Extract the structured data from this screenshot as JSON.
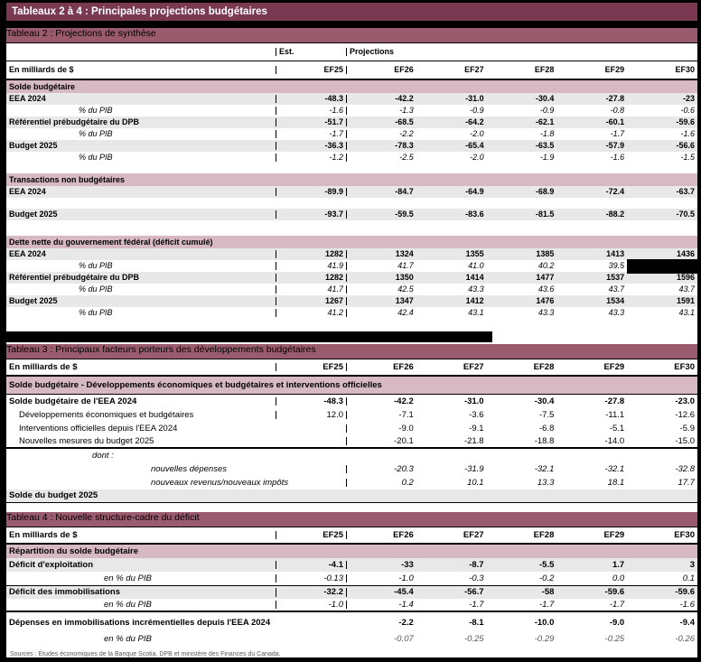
{
  "page": {
    "title": "Tableaux 2 à 4 : Principales projections budgétaires",
    "sources": "Sources : Études économiques de la Banque Scotia, DPB et ministère des Finances du Canada."
  },
  "colors": {
    "page_background": "#000000",
    "title_bar": "#7A3950",
    "table_bar": "#9A5B6E",
    "section_row": "#D6B9C2",
    "striped_row": "#E9E8E8",
    "muted_text": "#595959"
  },
  "columns": {
    "unit_label": "En milliards de $",
    "est_label": "Est.",
    "projections_label": "Projections",
    "years": [
      "EF25",
      "EF26",
      "EF27",
      "EF28",
      "EF29",
      "EF30"
    ]
  },
  "tables": [
    {
      "id": "table2",
      "title": "Tableau 2 : Projections de synthèse",
      "est_row": true,
      "rows": [
        {
          "type": "section",
          "label": "Solde budgétaire",
          "h": 14
        },
        {
          "type": "data",
          "label": "EEA 2024",
          "values": [
            "-48.3",
            "-42.2",
            "-31.0",
            "-30.4",
            "-27.8",
            "-23"
          ]
        },
        {
          "type": "pct",
          "label": "% du PIB",
          "ind": "pct",
          "values": [
            "-1.6",
            "-1.3",
            "-0.9",
            "-0.9",
            "-0.8",
            "-0.6"
          ]
        },
        {
          "type": "data",
          "label": "Référentiel prébudgétaire du DPB",
          "values": [
            "-51.7",
            "-68.5",
            "-64.2",
            "-62.1",
            "-60.1",
            "-59.6"
          ]
        },
        {
          "type": "pct",
          "label": "% du PIB",
          "ind": "pct",
          "values": [
            "-1.7",
            "-2.2",
            "-2.0",
            "-1.8",
            "-1.7",
            "-1.6"
          ]
        },
        {
          "type": "data",
          "label": "Budget 2025",
          "values": [
            "-36.3",
            "-78.3",
            "-65.4",
            "-63.5",
            "-57.9",
            "-56.6"
          ]
        },
        {
          "type": "pct",
          "label": "% du PIB",
          "ind": "pct",
          "values": [
            "-1.2",
            "-2.5",
            "-2.0",
            "-1.9",
            "-1.6",
            "-1.5"
          ]
        },
        {
          "type": "spacer",
          "h": 11
        },
        {
          "type": "section",
          "label": "Transactions non budgétaires",
          "h": 14
        },
        {
          "type": "data",
          "label": "EEA 2024",
          "values": [
            "-89.9",
            "-84.7",
            "-64.9",
            "-68.9",
            "-72.4",
            "-63.7"
          ]
        },
        {
          "type": "spacer",
          "h": 12
        },
        {
          "type": "data",
          "label": "Budget 2025",
          "values": [
            "-93.7",
            "-59.5",
            "-83.6",
            "-81.5",
            "-88.2",
            "-70.5"
          ]
        },
        {
          "type": "spacer",
          "h": 17
        },
        {
          "type": "section",
          "label": "Dette nette du gouvernement fédéral (déficit cumulé)",
          "h": 14
        },
        {
          "type": "data",
          "label": "EEA 2024",
          "values": [
            "1282",
            "1324",
            "1355",
            "1385",
            "1413",
            "1436"
          ]
        },
        {
          "type": "pct",
          "label": "% du PIB",
          "ind": "pct",
          "values": [
            "41.9",
            "41.7",
            "41.0",
            "40.2",
            "39.5",
            ""
          ],
          "redact_last": true
        },
        {
          "type": "data",
          "label": "Référentiel prébudgétaire du DPB",
          "values": [
            "1282",
            "1350",
            "1414",
            "1477",
            "1537",
            "1596"
          ]
        },
        {
          "type": "pct",
          "label": "% du PIB",
          "ind": "pct",
          "values": [
            "41.7",
            "42.5",
            "43.3",
            "43.6",
            "43.7",
            "43.7"
          ]
        },
        {
          "type": "data",
          "label": "Budget 2025",
          "values": [
            "1267",
            "1347",
            "1412",
            "1476",
            "1534",
            "1591"
          ]
        },
        {
          "type": "pct",
          "label": "% du PIB",
          "ind": "pct",
          "values": [
            "41.2",
            "42.4",
            "43.1",
            "43.3",
            "43.3",
            "43.1"
          ]
        }
      ]
    },
    {
      "id": "table3",
      "title": "Tableau 3 : Principaux facteurs porteurs des développements budgétaires",
      "est_row": false,
      "rows": [
        {
          "type": "section",
          "label": "Solde budgétaire - Développements économiques et budgétaires et interventions officielles",
          "h": 20,
          "bb1": true
        },
        {
          "type": "plainbold",
          "label": "Solde budgétaire de l'EEA 2024",
          "values": [
            "-48.3",
            "-42.2",
            "-31.0",
            "-30.4",
            "-27.8",
            "-23.0"
          ]
        },
        {
          "type": "plain",
          "label": "Développements économiques et budgétaires",
          "ind": "1",
          "values": [
            "12.0",
            "-7.1",
            "-3.6",
            "-7.5",
            "-11.1",
            "-12.6"
          ]
        },
        {
          "type": "plain",
          "label": "Interventions officielles depuis l'EEA 2024",
          "ind": "1",
          "values": [
            "",
            "-9.0",
            "-9.1",
            "-6.8",
            "-5.1",
            "-5.9"
          ]
        },
        {
          "type": "plain",
          "label": "Nouvelles mesures du budget 2025",
          "ind": "1",
          "bb2": true,
          "values": [
            "",
            "-20.1",
            "-21.8",
            "-18.8",
            "-14.0",
            "-15.0"
          ]
        },
        {
          "type": "pct",
          "label": "dont :",
          "ind": "dont"
        },
        {
          "type": "pct",
          "label": "nouvelles dépenses",
          "ind": "sub",
          "values": [
            "",
            "-20.3",
            "-31.9",
            "-32.1",
            "-32.1",
            "-32.8"
          ]
        },
        {
          "type": "pct",
          "label": "nouveaux revenus/nouveaux impôts",
          "ind": "sub",
          "values": [
            "",
            "0.2",
            "10.1",
            "13.3",
            "18.1",
            "17.7"
          ]
        },
        {
          "type": "gray",
          "label": "Solde du budget 2025",
          "bb1": true
        }
      ]
    },
    {
      "id": "table4",
      "title": "Tableau 4 : Nouvelle structure-cadre du déficit",
      "est_row": false,
      "rows": [
        {
          "type": "section",
          "label": "Répartition du solde budgétaire",
          "h": 15
        },
        {
          "type": "data",
          "label": "Déficit d'exploitation",
          "values": [
            "-4.1",
            "-33",
            "-8.7",
            "-5.5",
            "1.7",
            "3"
          ]
        },
        {
          "type": "pct",
          "label": "en % du PIB",
          "ind": "pct4",
          "values": [
            "-0.13",
            "-1.0",
            "-0.3",
            "-0.2",
            "0.0",
            "0.1"
          ]
        },
        {
          "type": "data",
          "label": "Déficit des immobilisations",
          "bt1": true,
          "values": [
            "-32.2",
            "-45.4",
            "-56.7",
            "-58",
            "-59.6",
            "-59.6"
          ]
        },
        {
          "type": "pct",
          "label": "en % du PIB",
          "ind": "pct4",
          "bb2": true,
          "values": [
            "-1.0",
            "-1.4",
            "-1.7",
            "-1.7",
            "-1.7",
            "-1.6"
          ]
        },
        {
          "type": "spacer",
          "h": 4,
          "no_vl": true
        },
        {
          "type": "plainbold",
          "label": "Dépenses en immobilisations incrémentielles depuis l'EEA 2024",
          "no_vl": true,
          "values": [
            "",
            "-2.2",
            "-8.1",
            "-10.0",
            "-9.0",
            "-9.4"
          ]
        },
        {
          "type": "spacer",
          "h": 3,
          "no_vl": true
        },
        {
          "type": "pctgray",
          "label": "en % du PIB",
          "ind": "pct4",
          "no_vl": true,
          "values": [
            "",
            "-0.07",
            "-0.25",
            "-0.29",
            "-0.25",
            "-0.26"
          ]
        }
      ]
    }
  ]
}
